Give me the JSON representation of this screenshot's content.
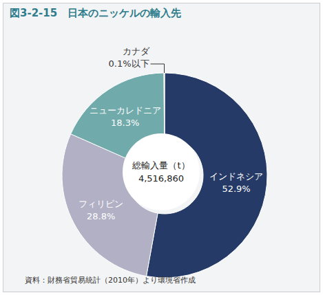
{
  "chart_data": {
    "type": "pie",
    "title": "図3-2-15　日本のニッケルの輸入先",
    "categories": [
      "インドネシア",
      "フィリピン",
      "ニューカレドニア",
      "カナダ"
    ],
    "values": [
      52.9,
      28.8,
      18.3,
      0.1
    ],
    "value_labels": [
      "52.9%",
      "28.8%",
      "18.3%",
      "0.1%以下"
    ],
    "colors": [
      "#253a66",
      "#b1b0c5",
      "#70aaab",
      "#e6d77c"
    ],
    "data_labels": true,
    "center_label": "総輸入量（t）",
    "total": 4516860,
    "total_label": "4,516,860",
    "source": "資料：財務省貿易統計（2010年）より環境省作成"
  }
}
